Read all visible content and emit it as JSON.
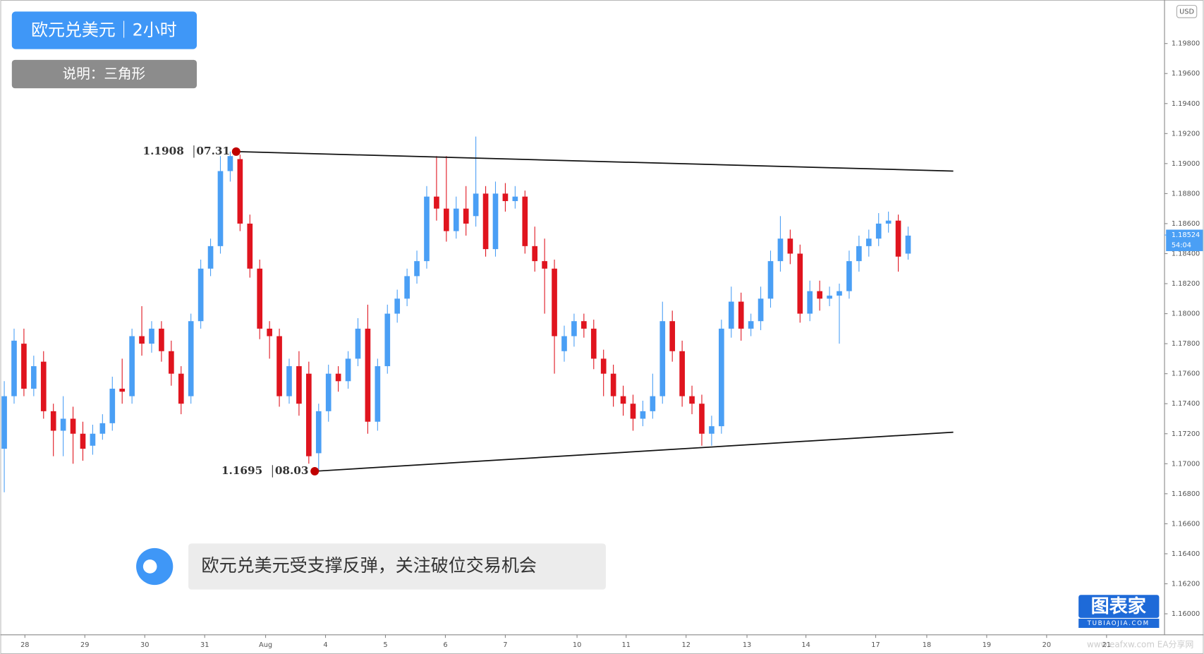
{
  "header": {
    "title": "欧元兑美元｜2小时",
    "note": "说明：三角形"
  },
  "comment": "欧元兑美元受支撑反弹，关注破位交易机会",
  "logo": {
    "name": "图表家",
    "site": "TUBIAOJIA.COM"
  },
  "watermark": "www.eafxw.com   EA分享网",
  "chart_data": {
    "type": "candlestick",
    "up_color": "#4a9ff5",
    "down_color": "#e0141e",
    "grid": false,
    "currency": "USD",
    "last_price": 1.18524,
    "countdown": "54:04",
    "xlim": [
      -0.4,
      118.1
    ],
    "ylim": [
      1.1586,
      1.2009
    ],
    "xticks": [
      {
        "value": 2.1,
        "label": "28"
      },
      {
        "value": 8.2,
        "label": "29"
      },
      {
        "value": 14.3,
        "label": "30"
      },
      {
        "value": 20.4,
        "label": "31"
      },
      {
        "value": 26.6,
        "label": "Aug"
      },
      {
        "value": 32.7,
        "label": "4"
      },
      {
        "value": 38.8,
        "label": "5"
      },
      {
        "value": 44.9,
        "label": "6"
      },
      {
        "value": 51.0,
        "label": "7"
      },
      {
        "value": 58.3,
        "label": "10"
      },
      {
        "value": 63.3,
        "label": "11"
      },
      {
        "value": 69.4,
        "label": "12"
      },
      {
        "value": 75.6,
        "label": "13"
      },
      {
        "value": 81.6,
        "label": "14"
      },
      {
        "value": 88.7,
        "label": "17"
      },
      {
        "value": 93.9,
        "label": "18"
      },
      {
        "value": 100.0,
        "label": "19"
      },
      {
        "value": 106.1,
        "label": "20"
      },
      {
        "value": 112.2,
        "label": "21"
      }
    ],
    "yticks": [
      {
        "value": 1.16,
        "label": "1.16000"
      },
      {
        "value": 1.162,
        "label": "1.16200"
      },
      {
        "value": 1.164,
        "label": "1.16400"
      },
      {
        "value": 1.166,
        "label": "1.16600"
      },
      {
        "value": 1.168,
        "label": "1.16800"
      },
      {
        "value": 1.17,
        "label": "1.17000"
      },
      {
        "value": 1.172,
        "label": "1.17200"
      },
      {
        "value": 1.174,
        "label": "1.17400"
      },
      {
        "value": 1.176,
        "label": "1.17600"
      },
      {
        "value": 1.178,
        "label": "1.17800"
      },
      {
        "value": 1.18,
        "label": "1.18000"
      },
      {
        "value": 1.182,
        "label": "1.18200"
      },
      {
        "value": 1.184,
        "label": "1.18400"
      },
      {
        "value": 1.186,
        "label": "1.18600"
      },
      {
        "value": 1.188,
        "label": "1.18800"
      },
      {
        "value": 1.19,
        "label": "1.19000"
      },
      {
        "value": 1.192,
        "label": "1.19200"
      },
      {
        "value": 1.194,
        "label": "1.19400"
      },
      {
        "value": 1.196,
        "label": "1.19600"
      },
      {
        "value": 1.198,
        "label": "1.19800"
      }
    ],
    "x": [
      0,
      1,
      2,
      3,
      4,
      5,
      6,
      7,
      8,
      9,
      10,
      11,
      12,
      13,
      14,
      15,
      16,
      17,
      18,
      19,
      20,
      21,
      22,
      23,
      24,
      25,
      26,
      27,
      28,
      29,
      30,
      31,
      32,
      33,
      34,
      35,
      36,
      37,
      38,
      39,
      40,
      41,
      42,
      43,
      44,
      45,
      46,
      47,
      48,
      49,
      50,
      51,
      52,
      53,
      54,
      55,
      56,
      57,
      58,
      59,
      60,
      61,
      62,
      63,
      64,
      65,
      66,
      67,
      68,
      69,
      70,
      71,
      72,
      73,
      74,
      75,
      76,
      77,
      78,
      79,
      80,
      81,
      82,
      83,
      84,
      85,
      86,
      87,
      88,
      89,
      90,
      91,
      92
    ],
    "open": [
      1.171,
      1.1745,
      1.178,
      1.175,
      1.1768,
      1.1735,
      1.1722,
      1.173,
      1.172,
      1.1712,
      1.172,
      1.1727,
      1.175,
      1.1745,
      1.1785,
      1.178,
      1.179,
      1.1775,
      1.176,
      1.1745,
      1.1795,
      1.183,
      1.1845,
      1.1895,
      1.1903,
      1.186,
      1.183,
      1.179,
      1.1785,
      1.1745,
      1.1765,
      1.176,
      1.1707,
      1.1735,
      1.176,
      1.1755,
      1.177,
      1.179,
      1.1728,
      1.1765,
      1.18,
      1.181,
      1.1825,
      1.1835,
      1.1878,
      1.187,
      1.1855,
      1.187,
      1.1865,
      1.188,
      1.1843,
      1.188,
      1.1875,
      1.1878,
      1.1845,
      1.1835,
      1.183,
      1.1775,
      1.1785,
      1.1795,
      1.179,
      1.177,
      1.176,
      1.1745,
      1.174,
      1.173,
      1.1735,
      1.1745,
      1.1795,
      1.1775,
      1.1745,
      1.174,
      1.172,
      1.1725,
      1.179,
      1.1808,
      1.179,
      1.1795,
      1.181,
      1.1835,
      1.185,
      1.184,
      1.18,
      1.1815,
      1.181,
      1.1812,
      1.1815,
      1.1835,
      1.1845,
      1.185,
      1.186,
      1.1862,
      1.184
    ],
    "high": [
      1.1755,
      1.179,
      1.179,
      1.1772,
      1.1775,
      1.174,
      1.1745,
      1.1738,
      1.1728,
      1.1726,
      1.1733,
      1.1758,
      1.177,
      1.179,
      1.1805,
      1.1795,
      1.1795,
      1.1782,
      1.1765,
      1.18,
      1.1836,
      1.185,
      1.1905,
      1.1908,
      1.1906,
      1.1866,
      1.1836,
      1.1795,
      1.179,
      1.177,
      1.1775,
      1.1768,
      1.174,
      1.1766,
      1.1765,
      1.1775,
      1.1797,
      1.1806,
      1.177,
      1.1806,
      1.1816,
      1.183,
      1.1842,
      1.1885,
      1.1905,
      1.1905,
      1.1878,
      1.1885,
      1.1918,
      1.1885,
      1.1888,
      1.1887,
      1.1885,
      1.1882,
      1.1858,
      1.185,
      1.1836,
      1.1792,
      1.18,
      1.18,
      1.1796,
      1.1776,
      1.1766,
      1.1752,
      1.1746,
      1.1742,
      1.176,
      1.1808,
      1.1802,
      1.1782,
      1.1752,
      1.1746,
      1.1732,
      1.1796,
      1.1818,
      1.1814,
      1.18,
      1.1818,
      1.1842,
      1.1865,
      1.1856,
      1.1846,
      1.1822,
      1.1822,
      1.1818,
      1.182,
      1.1842,
      1.1852,
      1.1856,
      1.1867,
      1.1868,
      1.1866,
      1.1858
    ],
    "low": [
      1.1681,
      1.174,
      1.1745,
      1.1745,
      1.173,
      1.1705,
      1.1705,
      1.17,
      1.1702,
      1.1706,
      1.1716,
      1.1722,
      1.174,
      1.174,
      1.1772,
      1.1774,
      1.1768,
      1.1752,
      1.1733,
      1.174,
      1.179,
      1.1825,
      1.184,
      1.1888,
      1.1855,
      1.1824,
      1.1783,
      1.177,
      1.1738,
      1.174,
      1.1732,
      1.17,
      1.1695,
      1.1728,
      1.1748,
      1.175,
      1.1765,
      1.172,
      1.1722,
      1.176,
      1.1794,
      1.1805,
      1.182,
      1.183,
      1.1862,
      1.1848,
      1.185,
      1.1852,
      1.1858,
      1.1838,
      1.1838,
      1.1868,
      1.187,
      1.184,
      1.1828,
      1.18,
      1.176,
      1.1768,
      1.1778,
      1.1784,
      1.1763,
      1.1745,
      1.1738,
      1.1732,
      1.1722,
      1.1725,
      1.173,
      1.174,
      1.1768,
      1.1738,
      1.1733,
      1.1712,
      1.1712,
      1.172,
      1.1784,
      1.1782,
      1.1785,
      1.1789,
      1.1804,
      1.1828,
      1.1833,
      1.1794,
      1.1795,
      1.1802,
      1.1805,
      1.178,
      1.181,
      1.1828,
      1.1838,
      1.1845,
      1.1854,
      1.1828,
      1.1836
    ],
    "close": [
      1.1745,
      1.1782,
      1.175,
      1.1765,
      1.1735,
      1.1722,
      1.173,
      1.172,
      1.171,
      1.172,
      1.1727,
      1.175,
      1.1748,
      1.1785,
      1.178,
      1.179,
      1.1775,
      1.176,
      1.174,
      1.1795,
      1.183,
      1.1845,
      1.1895,
      1.1905,
      1.186,
      1.183,
      1.179,
      1.1785,
      1.1745,
      1.1765,
      1.174,
      1.1705,
      1.1735,
      1.176,
      1.1755,
      1.177,
      1.179,
      1.1728,
      1.1765,
      1.18,
      1.181,
      1.1825,
      1.1835,
      1.1878,
      1.187,
      1.1855,
      1.187,
      1.186,
      1.188,
      1.1843,
      1.188,
      1.1875,
      1.1878,
      1.1845,
      1.1835,
      1.183,
      1.1785,
      1.1785,
      1.1795,
      1.179,
      1.177,
      1.176,
      1.1745,
      1.174,
      1.173,
      1.1735,
      1.1745,
      1.1795,
      1.1775,
      1.1745,
      1.174,
      1.172,
      1.1725,
      1.179,
      1.1808,
      1.179,
      1.1795,
      1.181,
      1.1835,
      1.185,
      1.184,
      1.18,
      1.1815,
      1.181,
      1.1812,
      1.1815,
      1.1835,
      1.1845,
      1.185,
      1.186,
      1.1862,
      1.1838,
      1.1852
    ],
    "trendlines": [
      {
        "x": [
          23.6,
          96.6
        ],
        "y": [
          1.1908,
          1.1895
        ]
      },
      {
        "x": [
          31.6,
          96.6
        ],
        "y": [
          1.1695,
          1.1721
        ]
      }
    ],
    "points": [
      {
        "x": 23.6,
        "price": 1.1908,
        "date": "07.31"
      },
      {
        "x": 31.6,
        "price": 1.1695,
        "date": "08.03"
      }
    ]
  }
}
